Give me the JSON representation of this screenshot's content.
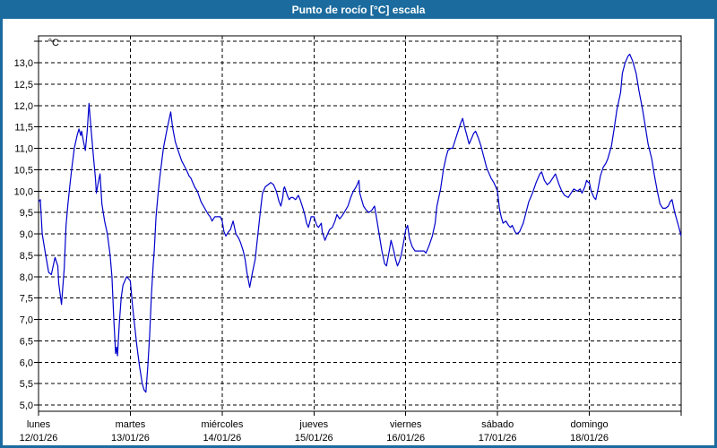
{
  "window": {
    "title": "Punto de rocío [°C] escala"
  },
  "colors": {
    "titlebar_bg": "#1b6b9e",
    "frame": "#1b6b9e",
    "plot_bg": "#ffffff",
    "grid": "#000000",
    "axis": "#000000",
    "text": "#000000",
    "line": "#0000cc"
  },
  "chart_data": {
    "type": "line",
    "title": "Punto de rocío [°C] escala",
    "y_unit_label": "°C",
    "ylim": [
      5.0,
      13.5
    ],
    "y_grid_step": 0.5,
    "grid": "dashed",
    "legend": "none",
    "x_range_days": [
      0,
      7
    ],
    "y_ticks": [
      {
        "v": 13.0,
        "label": "13,0"
      },
      {
        "v": 12.5,
        "label": "12,5"
      },
      {
        "v": 12.0,
        "label": "12,0"
      },
      {
        "v": 11.5,
        "label": "11,5"
      },
      {
        "v": 11.0,
        "label": "11,0"
      },
      {
        "v": 10.5,
        "label": "10,5"
      },
      {
        "v": 10.0,
        "label": "10,0"
      },
      {
        "v": 9.5,
        "label": "9,5"
      },
      {
        "v": 9.0,
        "label": "9,0"
      },
      {
        "v": 8.5,
        "label": "8,5"
      },
      {
        "v": 8.0,
        "label": "8,0"
      },
      {
        "v": 7.5,
        "label": "7,5"
      },
      {
        "v": 7.0,
        "label": "7,0"
      },
      {
        "v": 6.5,
        "label": "6,5"
      },
      {
        "v": 6.0,
        "label": "6,0"
      },
      {
        "v": 5.5,
        "label": "5,5"
      },
      {
        "v": 5.0,
        "label": "5,0"
      }
    ],
    "x_days": [
      {
        "name": "lunes",
        "date": "12/01/26"
      },
      {
        "name": "martes",
        "date": "13/01/26"
      },
      {
        "name": "miércoles",
        "date": "14/01/26"
      },
      {
        "name": "jueves",
        "date": "15/01/26"
      },
      {
        "name": "viernes",
        "date": "16/01/26"
      },
      {
        "name": "sábado",
        "date": "17/01/26"
      },
      {
        "name": "domingo",
        "date": "18/01/26"
      }
    ],
    "series": [
      {
        "name": "Punto de rocío",
        "x_unit": "days since lunes 12/01/26 00:00",
        "y_unit": "°C",
        "points": [
          [
            0.0,
            9.75
          ],
          [
            0.02,
            9.8
          ],
          [
            0.04,
            9.0
          ],
          [
            0.07,
            8.6
          ],
          [
            0.11,
            8.1
          ],
          [
            0.14,
            8.05
          ],
          [
            0.18,
            8.45
          ],
          [
            0.21,
            8.25
          ],
          [
            0.22,
            7.85
          ],
          [
            0.25,
            7.35
          ],
          [
            0.28,
            8.2
          ],
          [
            0.3,
            9.2
          ],
          [
            0.32,
            9.7
          ],
          [
            0.34,
            10.1
          ],
          [
            0.36,
            10.5
          ],
          [
            0.39,
            11.0
          ],
          [
            0.42,
            11.3
          ],
          [
            0.44,
            11.45
          ],
          [
            0.46,
            11.3
          ],
          [
            0.47,
            11.4
          ],
          [
            0.49,
            11.15
          ],
          [
            0.51,
            10.95
          ],
          [
            0.53,
            11.4
          ],
          [
            0.55,
            12.05
          ],
          [
            0.57,
            11.5
          ],
          [
            0.6,
            10.75
          ],
          [
            0.62,
            10.3
          ],
          [
            0.63,
            9.95
          ],
          [
            0.65,
            10.2
          ],
          [
            0.67,
            10.4
          ],
          [
            0.69,
            9.7
          ],
          [
            0.72,
            9.3
          ],
          [
            0.75,
            9.0
          ],
          [
            0.78,
            8.5
          ],
          [
            0.8,
            8.0
          ],
          [
            0.82,
            7.0
          ],
          [
            0.84,
            6.2
          ],
          [
            0.85,
            6.35
          ],
          [
            0.86,
            6.15
          ],
          [
            0.88,
            6.9
          ],
          [
            0.9,
            7.5
          ],
          [
            0.92,
            7.8
          ],
          [
            0.94,
            7.9
          ],
          [
            0.96,
            8.0
          ],
          [
            0.98,
            7.95
          ],
          [
            1.0,
            7.9
          ],
          [
            1.02,
            7.4
          ],
          [
            1.04,
            7.0
          ],
          [
            1.07,
            6.4
          ],
          [
            1.1,
            5.9
          ],
          [
            1.13,
            5.5
          ],
          [
            1.15,
            5.35
          ],
          [
            1.17,
            5.3
          ],
          [
            1.19,
            5.9
          ],
          [
            1.21,
            6.6
          ],
          [
            1.23,
            7.6
          ],
          [
            1.25,
            8.3
          ],
          [
            1.26,
            8.6
          ],
          [
            1.28,
            9.4
          ],
          [
            1.3,
            9.9
          ],
          [
            1.32,
            10.3
          ],
          [
            1.36,
            11.0
          ],
          [
            1.4,
            11.45
          ],
          [
            1.44,
            11.85
          ],
          [
            1.46,
            11.5
          ],
          [
            1.49,
            11.15
          ],
          [
            1.52,
            10.95
          ],
          [
            1.56,
            10.7
          ],
          [
            1.61,
            10.5
          ],
          [
            1.64,
            10.35
          ],
          [
            1.66,
            10.3
          ],
          [
            1.7,
            10.1
          ],
          [
            1.73,
            10.0
          ],
          [
            1.77,
            9.75
          ],
          [
            1.81,
            9.6
          ],
          [
            1.85,
            9.45
          ],
          [
            1.87,
            9.4
          ],
          [
            1.89,
            9.3
          ],
          [
            1.92,
            9.4
          ],
          [
            1.95,
            9.4
          ],
          [
            1.98,
            9.4
          ],
          [
            2.0,
            9.3
          ],
          [
            2.02,
            9.05
          ],
          [
            2.04,
            8.95
          ],
          [
            2.07,
            9.05
          ],
          [
            2.09,
            9.1
          ],
          [
            2.12,
            9.3
          ],
          [
            2.15,
            9.0
          ],
          [
            2.18,
            8.9
          ],
          [
            2.2,
            8.8
          ],
          [
            2.23,
            8.6
          ],
          [
            2.25,
            8.4
          ],
          [
            2.27,
            8.1
          ],
          [
            2.3,
            7.75
          ],
          [
            2.33,
            8.1
          ],
          [
            2.36,
            8.4
          ],
          [
            2.39,
            9.0
          ],
          [
            2.42,
            9.6
          ],
          [
            2.44,
            9.95
          ],
          [
            2.47,
            10.1
          ],
          [
            2.5,
            10.15
          ],
          [
            2.53,
            10.2
          ],
          [
            2.56,
            10.15
          ],
          [
            2.59,
            10.0
          ],
          [
            2.62,
            9.75
          ],
          [
            2.64,
            9.65
          ],
          [
            2.66,
            9.85
          ],
          [
            2.67,
            10.05
          ],
          [
            2.68,
            10.1
          ],
          [
            2.71,
            9.9
          ],
          [
            2.73,
            9.8
          ],
          [
            2.75,
            9.85
          ],
          [
            2.77,
            9.85
          ],
          [
            2.8,
            9.8
          ],
          [
            2.83,
            9.9
          ],
          [
            2.85,
            9.8
          ],
          [
            2.88,
            9.6
          ],
          [
            2.9,
            9.45
          ],
          [
            2.92,
            9.25
          ],
          [
            2.94,
            9.15
          ],
          [
            2.97,
            9.4
          ],
          [
            2.99,
            9.4
          ],
          [
            3.0,
            9.4
          ],
          [
            3.03,
            9.2
          ],
          [
            3.05,
            9.15
          ],
          [
            3.08,
            9.25
          ],
          [
            3.09,
            9.05
          ],
          [
            3.12,
            8.85
          ],
          [
            3.15,
            9.0
          ],
          [
            3.17,
            9.1
          ],
          [
            3.2,
            9.15
          ],
          [
            3.23,
            9.3
          ],
          [
            3.25,
            9.45
          ],
          [
            3.28,
            9.35
          ],
          [
            3.3,
            9.4
          ],
          [
            3.33,
            9.5
          ],
          [
            3.37,
            9.65
          ],
          [
            3.4,
            9.85
          ],
          [
            3.43,
            10.0
          ],
          [
            3.46,
            10.1
          ],
          [
            3.49,
            10.25
          ],
          [
            3.5,
            9.95
          ],
          [
            3.52,
            9.8
          ],
          [
            3.54,
            9.65
          ],
          [
            3.57,
            9.55
          ],
          [
            3.6,
            9.5
          ],
          [
            3.63,
            9.55
          ],
          [
            3.66,
            9.65
          ],
          [
            3.68,
            9.4
          ],
          [
            3.71,
            9.0
          ],
          [
            3.74,
            8.6
          ],
          [
            3.77,
            8.3
          ],
          [
            3.79,
            8.25
          ],
          [
            3.82,
            8.6
          ],
          [
            3.84,
            8.85
          ],
          [
            3.87,
            8.6
          ],
          [
            3.89,
            8.4
          ],
          [
            3.91,
            8.25
          ],
          [
            3.93,
            8.35
          ],
          [
            3.95,
            8.5
          ],
          [
            3.98,
            8.85
          ],
          [
            4.0,
            9.1
          ],
          [
            4.02,
            9.2
          ],
          [
            4.04,
            8.9
          ],
          [
            4.07,
            8.7
          ],
          [
            4.1,
            8.6
          ],
          [
            4.14,
            8.6
          ],
          [
            4.17,
            8.6
          ],
          [
            4.2,
            8.6
          ],
          [
            4.22,
            8.55
          ],
          [
            4.25,
            8.7
          ],
          [
            4.29,
            8.95
          ],
          [
            4.32,
            9.25
          ],
          [
            4.34,
            9.65
          ],
          [
            4.38,
            10.05
          ],
          [
            4.41,
            10.5
          ],
          [
            4.44,
            10.8
          ],
          [
            4.46,
            10.95
          ],
          [
            4.49,
            11.0
          ],
          [
            4.51,
            11.0
          ],
          [
            4.54,
            11.2
          ],
          [
            4.57,
            11.4
          ],
          [
            4.6,
            11.6
          ],
          [
            4.62,
            11.7
          ],
          [
            4.64,
            11.5
          ],
          [
            4.66,
            11.35
          ],
          [
            4.69,
            11.1
          ],
          [
            4.72,
            11.25
          ],
          [
            4.74,
            11.35
          ],
          [
            4.76,
            11.4
          ],
          [
            4.79,
            11.25
          ],
          [
            4.82,
            11.05
          ],
          [
            4.85,
            10.8
          ],
          [
            4.88,
            10.55
          ],
          [
            4.9,
            10.45
          ],
          [
            4.93,
            10.3
          ],
          [
            4.96,
            10.2
          ],
          [
            4.98,
            10.1
          ],
          [
            5.0,
            10.0
          ],
          [
            5.02,
            9.6
          ],
          [
            5.04,
            9.4
          ],
          [
            5.06,
            9.25
          ],
          [
            5.09,
            9.3
          ],
          [
            5.12,
            9.2
          ],
          [
            5.14,
            9.15
          ],
          [
            5.16,
            9.2
          ],
          [
            5.19,
            9.05
          ],
          [
            5.21,
            9.0
          ],
          [
            5.24,
            9.05
          ],
          [
            5.28,
            9.25
          ],
          [
            5.31,
            9.5
          ],
          [
            5.34,
            9.75
          ],
          [
            5.38,
            9.95
          ],
          [
            5.42,
            10.2
          ],
          [
            5.46,
            10.4
          ],
          [
            5.48,
            10.45
          ],
          [
            5.51,
            10.25
          ],
          [
            5.54,
            10.15
          ],
          [
            5.57,
            10.2
          ],
          [
            5.6,
            10.3
          ],
          [
            5.63,
            10.4
          ],
          [
            5.67,
            10.15
          ],
          [
            5.7,
            10.0
          ],
          [
            5.73,
            9.9
          ],
          [
            5.77,
            9.85
          ],
          [
            5.8,
            9.95
          ],
          [
            5.83,
            10.05
          ],
          [
            5.87,
            10.0
          ],
          [
            5.9,
            10.05
          ],
          [
            5.92,
            9.95
          ],
          [
            5.95,
            10.1
          ],
          [
            5.97,
            10.25
          ],
          [
            5.99,
            10.2
          ],
          [
            6.0,
            10.2
          ],
          [
            6.02,
            10.0
          ],
          [
            6.05,
            9.85
          ],
          [
            6.07,
            9.8
          ],
          [
            6.09,
            10.0
          ],
          [
            6.12,
            10.35
          ],
          [
            6.15,
            10.55
          ],
          [
            6.18,
            10.65
          ],
          [
            6.2,
            10.75
          ],
          [
            6.24,
            11.05
          ],
          [
            6.27,
            11.45
          ],
          [
            6.3,
            11.9
          ],
          [
            6.34,
            12.3
          ],
          [
            6.36,
            12.75
          ],
          [
            6.39,
            13.0
          ],
          [
            6.42,
            13.15
          ],
          [
            6.44,
            13.2
          ],
          [
            6.47,
            13.05
          ],
          [
            6.51,
            12.75
          ],
          [
            6.54,
            12.35
          ],
          [
            6.58,
            11.9
          ],
          [
            6.61,
            11.5
          ],
          [
            6.64,
            11.1
          ],
          [
            6.68,
            10.75
          ],
          [
            6.71,
            10.35
          ],
          [
            6.74,
            10.0
          ],
          [
            6.77,
            9.7
          ],
          [
            6.8,
            9.6
          ],
          [
            6.83,
            9.6
          ],
          [
            6.86,
            9.65
          ],
          [
            6.88,
            9.75
          ],
          [
            6.9,
            9.8
          ],
          [
            6.93,
            9.5
          ],
          [
            6.97,
            9.2
          ],
          [
            7.0,
            8.95
          ]
        ]
      }
    ]
  }
}
